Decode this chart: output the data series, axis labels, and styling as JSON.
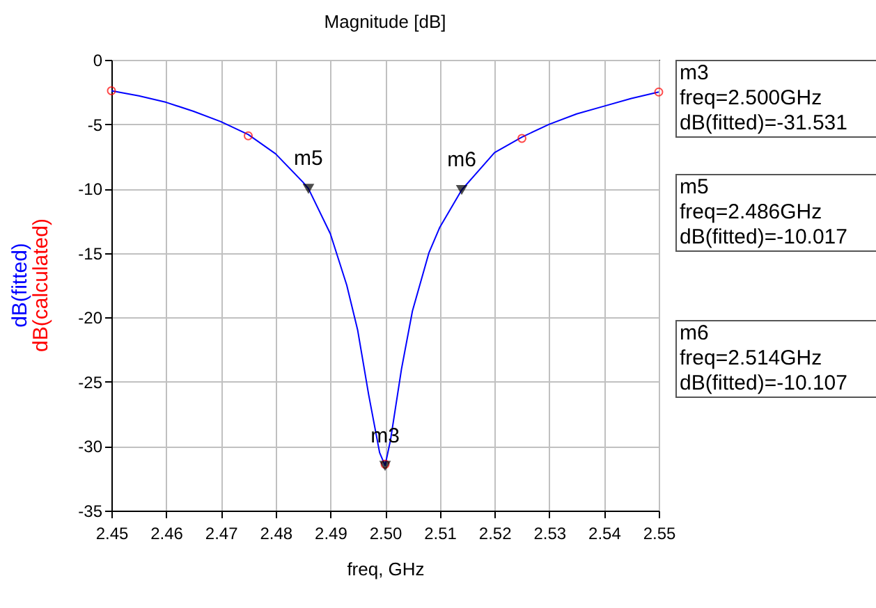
{
  "chart_data": {
    "type": "line",
    "title": "Magnitude [dB]",
    "xlabel": "freq, GHz",
    "legend": "left",
    "grid": true,
    "xlim": [
      2.45,
      2.55
    ],
    "xticks": [
      2.45,
      2.46,
      2.47,
      2.48,
      2.49,
      {
        "value": 2.5,
        "label": "2.50"
      },
      2.51,
      2.52,
      2.53,
      2.54,
      2.55
    ],
    "ylim": [
      -35,
      0
    ],
    "yticks": [
      -35,
      -30,
      -25,
      -20,
      -15,
      -10,
      -5,
      0
    ],
    "series": [
      {
        "name": "dB(fitted)",
        "type": "line",
        "color": "#0000ff",
        "marker": "none",
        "x": [
          2.45,
          2.455,
          2.46,
          2.465,
          2.47,
          2.475,
          2.48,
          2.485,
          2.486,
          2.49,
          2.493,
          2.495,
          2.497,
          2.499,
          2.5,
          2.501,
          2.503,
          2.505,
          2.508,
          2.51,
          2.514,
          2.52,
          2.525,
          2.53,
          2.535,
          2.54,
          2.545,
          2.55
        ],
        "values": [
          -2.4,
          -2.8,
          -3.3,
          -4.0,
          -4.8,
          -5.8,
          -7.3,
          -9.5,
          -10.0,
          -13.5,
          -17.5,
          -21,
          -26,
          -30.5,
          -31.5,
          -29.5,
          -24,
          -19.5,
          -15,
          -13,
          -10.1,
          -7.2,
          -6.0,
          -5.0,
          -4.2,
          -3.6,
          -3.0,
          -2.5
        ]
      },
      {
        "name": "dB(calculated)",
        "type": "scatter",
        "color": "#ff0000",
        "marker": "circle",
        "x": [
          2.45,
          2.475,
          2.5,
          2.525,
          2.55
        ],
        "values": [
          -2.4,
          -5.9,
          -31.4,
          -6.1,
          -2.5
        ]
      },
      {
        "type": "scatter",
        "color": "#000000",
        "marker": "triangle",
        "x": [
          2.5,
          2.486,
          2.514
        ],
        "values": [
          -31.531,
          -10.017,
          -10.107
        ]
      }
    ],
    "annotations": [
      {
        "text": "m3",
        "x": 2.5,
        "y": -31.531
      },
      {
        "text": "m5",
        "x": 2.486,
        "y": -10.017
      },
      {
        "text": "m6",
        "x": 2.514,
        "y": -10.107
      },
      "m3\nfreq=2.500GHz\ndB(fitted)=-31.531",
      "m5\nfreq=2.486GHz\ndB(fitted)=-10.017",
      "m6\nfreq=2.514GHz\ndB(fitted)=-10.107"
    ]
  }
}
